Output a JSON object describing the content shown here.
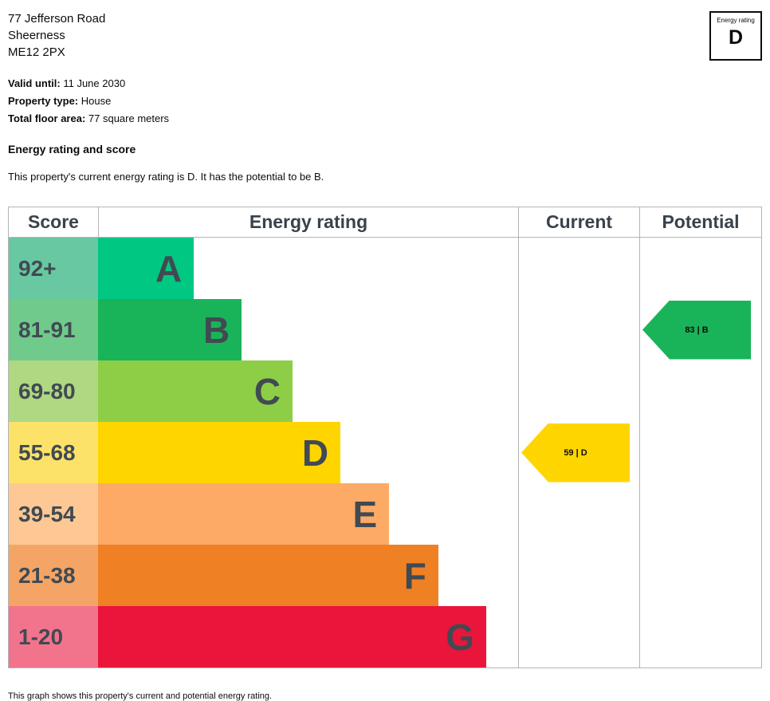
{
  "page": {
    "address": {
      "line1": "77 Jefferson Road",
      "line2": "Sheerness",
      "line3": "ME12 2PX"
    },
    "rating_badge": {
      "label": "Energy rating",
      "value": "D"
    },
    "details": [
      {
        "label": "Valid until:",
        "value": " 11 June 2030"
      },
      {
        "label": "Property type:",
        "value": " House"
      },
      {
        "label": "Total floor area:",
        "value": " 77 square meters"
      }
    ],
    "section_heading": "Energy rating and score",
    "summary": "This property's current energy rating is D. It has the potential to be B.",
    "footer_note": "This graph shows this property's current and potential energy rating."
  },
  "chart_data": {
    "type": "bar",
    "title": "Energy rating and score",
    "orientation": "horizontal",
    "headers": [
      "Score",
      "Energy rating",
      "Current",
      "Potential"
    ],
    "bands": [
      {
        "score": "92+",
        "letter": "A",
        "color": "#00c781",
        "tint": "#67c8a2",
        "width": "22.8%"
      },
      {
        "score": "81-91",
        "letter": "B",
        "color": "#19b459",
        "tint": "#6fca8c",
        "width": "34.2%"
      },
      {
        "score": "69-80",
        "letter": "C",
        "color": "#8dce46",
        "tint": "#aed881",
        "width": "46.3%"
      },
      {
        "score": "55-68",
        "letter": "D",
        "color": "#ffd500",
        "tint": "#fde269",
        "width": "57.7%"
      },
      {
        "score": "39-54",
        "letter": "E",
        "color": "#fcaa65",
        "tint": "#fdc894",
        "width": "69.3%"
      },
      {
        "score": "21-38",
        "letter": "F",
        "color": "#ef8023",
        "tint": "#f4a566",
        "width": "81.0%"
      },
      {
        "score": "1-20",
        "letter": "G",
        "color": "#e9153b",
        "tint": "#f2748c",
        "width": "92.4%"
      }
    ],
    "current": {
      "value": 59,
      "band": "D",
      "label": "59 | D",
      "color": "#ffd500",
      "band_index": 3
    },
    "potential": {
      "value": 83,
      "band": "B",
      "label": "83 | B",
      "color": "#19b459",
      "band_index": 1
    }
  }
}
